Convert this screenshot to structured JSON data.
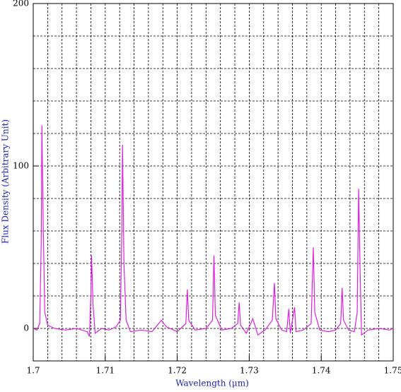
{
  "chart_data": {
    "type": "line",
    "xlabel": "Wavelength (μm)",
    "ylabel": "Flux Density (Arbitrary Unit)",
    "xlim": [
      1.7,
      1.75
    ],
    "ylim": [
      -20,
      200
    ],
    "xticks": [
      1.7,
      1.71,
      1.72,
      1.73,
      1.74,
      1.75
    ],
    "yticks": [
      0,
      100,
      200
    ],
    "xminorticks": [
      1.702,
      1.704,
      1.706,
      1.708,
      1.71,
      1.712,
      1.714,
      1.716,
      1.718,
      1.72,
      1.722,
      1.724,
      1.726,
      1.728,
      1.73,
      1.732,
      1.734,
      1.736,
      1.738,
      1.74,
      1.742,
      1.744,
      1.746,
      1.748
    ],
    "yminorticks": [
      0,
      20,
      40,
      60,
      80,
      100,
      120,
      140,
      160,
      180
    ],
    "grid": true,
    "x": [
      1.7,
      1.7005,
      1.7009,
      1.7011,
      1.7012,
      1.7014,
      1.7016,
      1.702,
      1.703,
      1.7045,
      1.706,
      1.7075,
      1.7078,
      1.708,
      1.7081,
      1.7083,
      1.7086,
      1.7095,
      1.7105,
      1.7115,
      1.7121,
      1.7123,
      1.7124,
      1.7126,
      1.7129,
      1.7135,
      1.715,
      1.7165,
      1.7178,
      1.7185,
      1.72,
      1.7212,
      1.7214,
      1.7216,
      1.7225,
      1.724,
      1.7249,
      1.7251,
      1.7253,
      1.7262,
      1.7275,
      1.7284,
      1.7286,
      1.7288,
      1.7296,
      1.7305,
      1.7312,
      1.7322,
      1.7332,
      1.7335,
      1.7337,
      1.7345,
      1.7352,
      1.7355,
      1.7357,
      1.7363,
      1.7365,
      1.7375,
      1.7386,
      1.7389,
      1.7391,
      1.7398,
      1.741,
      1.742,
      1.7427,
      1.7429,
      1.7431,
      1.7438,
      1.7446,
      1.745,
      1.7451,
      1.7452,
      1.7454,
      1.7456,
      1.7465,
      1.748,
      1.7495,
      1.75
    ],
    "series": [
      {
        "color": "#e020e0",
        "values": [
          0,
          -1,
          3,
          50,
          125,
          60,
          10,
          2,
          0,
          -1,
          0,
          -2,
          -5,
          20,
          45,
          15,
          -3,
          0,
          -1,
          1,
          5,
          60,
          113,
          40,
          5,
          -2,
          -1,
          -2,
          5,
          1,
          -2,
          3,
          24,
          5,
          -1,
          0,
          5,
          45,
          8,
          -1,
          0,
          3,
          16,
          2,
          -3,
          6,
          -4,
          -1,
          5,
          28,
          6,
          -1,
          -2,
          12,
          -3,
          13,
          -2,
          -1,
          3,
          50,
          10,
          -1,
          -2,
          -1,
          3,
          25,
          5,
          -1,
          -2,
          10,
          50,
          86,
          35,
          -4,
          -1,
          0,
          -1,
          0
        ]
      }
    ]
  }
}
